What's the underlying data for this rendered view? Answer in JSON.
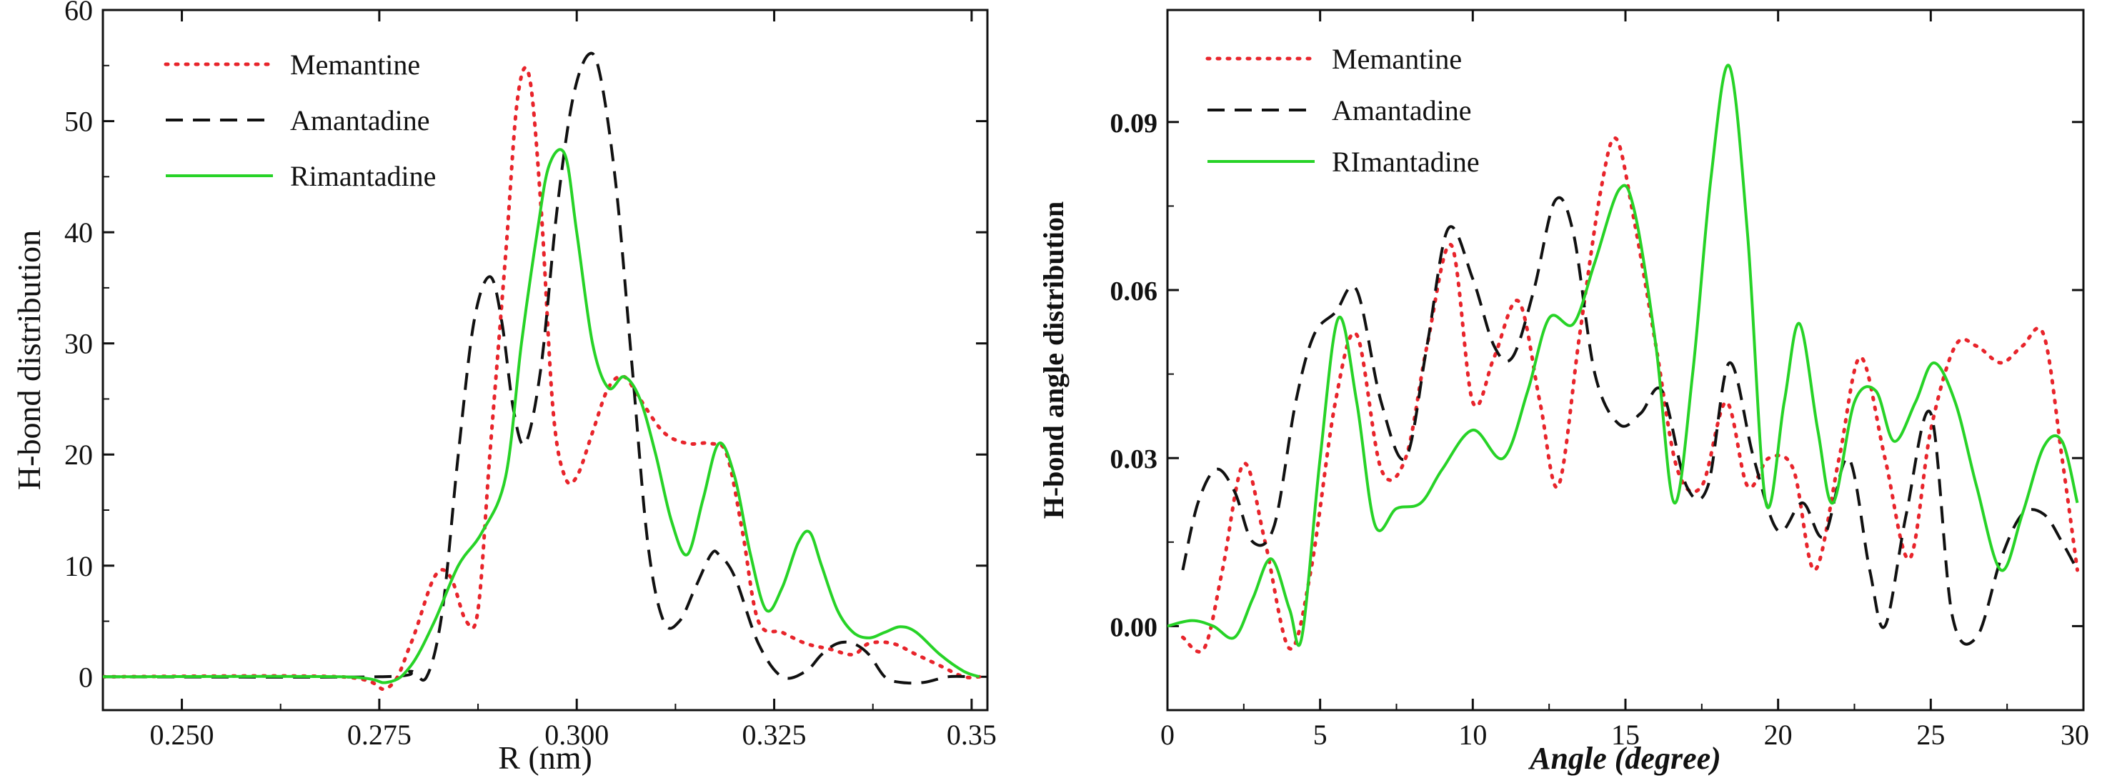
{
  "chart_data": [
    {
      "type": "line",
      "title": "",
      "xlabel": "R (nm)",
      "ylabel": "H-bond distribution",
      "xlim": [
        0.24,
        0.352
      ],
      "ylim": [
        -3,
        60
      ],
      "xticks": [
        "0.250",
        "0.275",
        "0.300",
        "0.325",
        "0.35"
      ],
      "xtick_values": [
        0.25,
        0.275,
        0.3,
        0.325,
        0.35
      ],
      "yticks": [
        "0",
        "10",
        "20",
        "30",
        "40",
        "50",
        "60"
      ],
      "ytick_values": [
        0,
        10,
        20,
        30,
        40,
        50,
        60
      ],
      "legend_position": "top-left",
      "series": [
        {
          "name": "Memantine",
          "style": "dotted",
          "color": "#e8242b",
          "x": [
            0.24,
            0.27,
            0.276,
            0.279,
            0.282,
            0.284,
            0.286,
            0.2875,
            0.289,
            0.291,
            0.2925,
            0.294,
            0.2955,
            0.297,
            0.2985,
            0.3,
            0.302,
            0.304,
            0.306,
            0.308,
            0.311,
            0.314,
            0.317,
            0.319,
            0.321,
            0.323,
            0.326,
            0.329,
            0.332,
            0.335,
            0.337,
            0.34,
            0.343,
            0.346,
            0.349,
            0.351
          ],
          "y": [
            0,
            0,
            -1,
            3,
            9,
            9,
            5,
            6,
            20,
            38,
            52,
            54,
            42,
            24,
            18,
            18,
            22,
            26,
            27,
            25,
            22,
            21,
            21,
            20,
            13,
            5,
            4,
            3,
            2.5,
            2,
            3,
            3,
            2,
            1,
            0,
            0
          ]
        },
        {
          "name": "Amantadine",
          "style": "dashed",
          "color": "#111111",
          "x": [
            0.24,
            0.275,
            0.279,
            0.281,
            0.283,
            0.285,
            0.287,
            0.289,
            0.2905,
            0.292,
            0.2935,
            0.2955,
            0.2975,
            0.2995,
            0.3015,
            0.303,
            0.305,
            0.307,
            0.309,
            0.311,
            0.313,
            0.315,
            0.317,
            0.318,
            0.32,
            0.323,
            0.326,
            0.329,
            0.331,
            0.333,
            0.335,
            0.337,
            0.339,
            0.341,
            0.344,
            0.347,
            0.35
          ],
          "y": [
            0,
            0,
            0.5,
            0,
            6,
            20,
            32,
            36,
            32,
            24,
            21,
            28,
            42,
            52,
            56,
            54,
            44,
            28,
            12,
            5,
            5,
            8,
            11,
            11,
            9,
            3,
            0,
            0.5,
            2,
            3,
            3,
            2,
            0,
            -0.5,
            -0.5,
            0,
            0
          ]
        },
        {
          "name": "Rimantadine",
          "style": "solid",
          "color": "#27d327",
          "x": [
            0.24,
            0.27,
            0.276,
            0.279,
            0.282,
            0.285,
            0.288,
            0.291,
            0.293,
            0.295,
            0.2965,
            0.2985,
            0.3,
            0.302,
            0.304,
            0.306,
            0.308,
            0.31,
            0.312,
            0.314,
            0.316,
            0.318,
            0.32,
            0.322,
            0.324,
            0.326,
            0.328,
            0.3295,
            0.331,
            0.333,
            0.335,
            0.337,
            0.339,
            0.341,
            0.343,
            0.346,
            0.349,
            0.351
          ],
          "y": [
            0,
            0,
            -0.5,
            1,
            5,
            10,
            13,
            18,
            30,
            40,
            46,
            47,
            40,
            30,
            26,
            27,
            25,
            20,
            14,
            11,
            16,
            21,
            18,
            11,
            6,
            8,
            12,
            13,
            10,
            6,
            4,
            3.5,
            4,
            4.5,
            4,
            2,
            0.5,
            0
          ]
        }
      ]
    },
    {
      "type": "line",
      "title": "",
      "xlabel": "Angle (degree)",
      "ylabel": "H-bond angle distribution",
      "xlim": [
        0,
        30
      ],
      "ylim": [
        -0.015,
        0.11
      ],
      "xticks": [
        "0",
        "5",
        "10",
        "15",
        "20",
        "25",
        "30"
      ],
      "xtick_values": [
        0,
        5,
        10,
        15,
        20,
        25,
        30
      ],
      "yticks": [
        "0.00",
        "0.03",
        "0.06",
        "0.09"
      ],
      "ytick_values": [
        0,
        0.03,
        0.06,
        0.09
      ],
      "legend_position": "top-left",
      "series": [
        {
          "name": "Memantine",
          "style": "dotted",
          "color": "#e8242b",
          "x": [
            0.5,
            1.2,
            1.8,
            2.5,
            3.2,
            4,
            4.7,
            5.5,
            6.2,
            7,
            7.8,
            8.5,
            9.3,
            10,
            10.7,
            11.5,
            12.2,
            12.8,
            13.5,
            14.2,
            14.7,
            15.3,
            16,
            16.7,
            17.5,
            18.3,
            19,
            19.7,
            20.5,
            21.2,
            22,
            22.7,
            23.5,
            24.3,
            25,
            25.8,
            26.5,
            27.3,
            28,
            28.7,
            29.3,
            29.8
          ],
          "y": [
            -0.002,
            -0.004,
            0.01,
            0.029,
            0.015,
            -0.004,
            0.01,
            0.04,
            0.052,
            0.028,
            0.03,
            0.05,
            0.068,
            0.04,
            0.048,
            0.058,
            0.04,
            0.025,
            0.052,
            0.078,
            0.087,
            0.072,
            0.05,
            0.028,
            0.025,
            0.04,
            0.025,
            0.03,
            0.028,
            0.01,
            0.03,
            0.048,
            0.03,
            0.012,
            0.035,
            0.05,
            0.05,
            0.047,
            0.05,
            0.052,
            0.03,
            0.01
          ]
        },
        {
          "name": "Amantadine",
          "style": "dashed",
          "color": "#111111",
          "x": [
            0.5,
            1,
            1.6,
            2.2,
            2.8,
            3.5,
            4.2,
            4.8,
            5.5,
            6.2,
            7,
            7.8,
            8.5,
            9.2,
            10,
            10.7,
            11.3,
            12,
            12.7,
            13.3,
            14,
            14.8,
            15.5,
            16.2,
            17,
            17.7,
            18.4,
            19.2,
            20,
            20.8,
            21.5,
            22.3,
            23,
            23.5,
            24.2,
            25,
            25.7,
            26.5,
            27.3,
            28,
            28.7,
            29.3,
            29.8
          ],
          "y": [
            0.01,
            0.022,
            0.028,
            0.024,
            0.015,
            0.018,
            0.04,
            0.052,
            0.056,
            0.06,
            0.04,
            0.03,
            0.05,
            0.071,
            0.062,
            0.05,
            0.048,
            0.06,
            0.076,
            0.07,
            0.045,
            0.036,
            0.038,
            0.042,
            0.025,
            0.025,
            0.047,
            0.03,
            0.017,
            0.022,
            0.016,
            0.03,
            0.01,
            0,
            0.02,
            0.038,
            0.002,
            -0.002,
            0.012,
            0.02,
            0.02,
            0.015,
            0.01
          ]
        },
        {
          "name": "RImantadine",
          "style": "solid",
          "color": "#27d327",
          "x": [
            0,
            0.8,
            1.5,
            2.2,
            2.8,
            3.4,
            4,
            4.4,
            5,
            5.6,
            6.2,
            6.8,
            7.5,
            8.3,
            9,
            10,
            11,
            11.8,
            12.5,
            13.3,
            14,
            14.8,
            15.3,
            16,
            16.6,
            17.2,
            17.8,
            18.4,
            19,
            19.6,
            20.2,
            20.7,
            21.3,
            21.8,
            22.5,
            23.2,
            23.8,
            24.5,
            25.1,
            25.8,
            26.5,
            27.3,
            28,
            28.7,
            29.3,
            29.8
          ],
          "y": [
            0,
            0.001,
            0,
            -0.002,
            0.005,
            0.012,
            0.003,
            -0.002,
            0.03,
            0.055,
            0.04,
            0.018,
            0.021,
            0.022,
            0.028,
            0.035,
            0.03,
            0.042,
            0.055,
            0.054,
            0.065,
            0.078,
            0.074,
            0.05,
            0.022,
            0.045,
            0.08,
            0.1,
            0.07,
            0.022,
            0.04,
            0.054,
            0.035,
            0.022,
            0.04,
            0.042,
            0.033,
            0.04,
            0.047,
            0.04,
            0.025,
            0.01,
            0.02,
            0.032,
            0.033,
            0.022
          ]
        }
      ]
    }
  ]
}
